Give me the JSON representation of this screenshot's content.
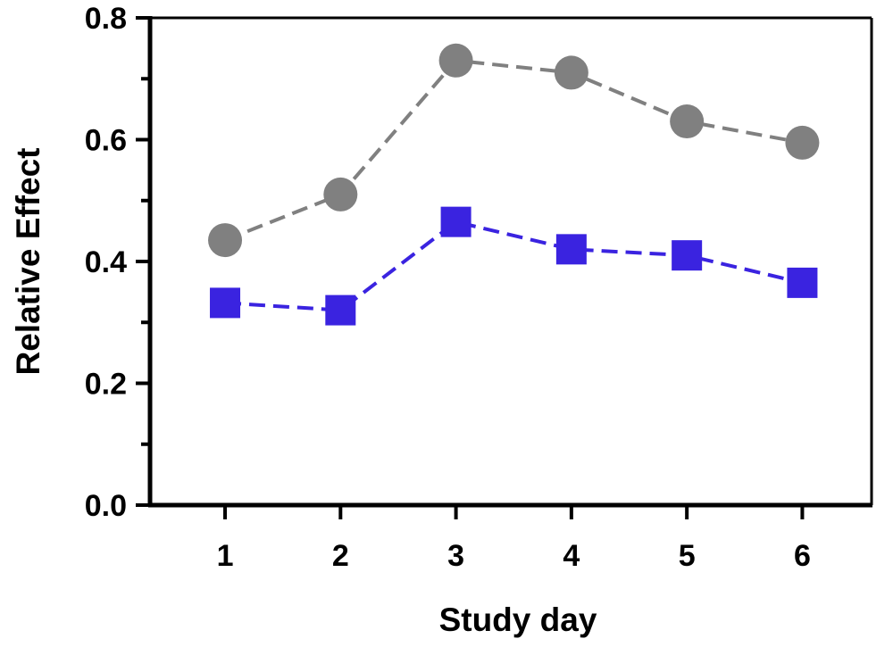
{
  "chart_data": {
    "type": "line",
    "title": "",
    "xlabel": "Study day",
    "ylabel": "Relative Effect",
    "x": [
      1,
      2,
      3,
      4,
      5,
      6
    ],
    "xlim": [
      0.35,
      6.6
    ],
    "ylim": [
      0.0,
      0.8
    ],
    "x_ticks": [
      "1",
      "2",
      "3",
      "4",
      "5",
      "6"
    ],
    "y_ticks": [
      "0.0",
      "0.2",
      "0.4",
      "0.6",
      "0.8"
    ],
    "grid": false,
    "legend": "none",
    "series": [
      {
        "marker": "circle",
        "line_style": "dashed",
        "color": "#808080",
        "values": [
          0.435,
          0.51,
          0.73,
          0.71,
          0.63,
          0.595
        ]
      },
      {
        "marker": "square",
        "line_style": "dashed",
        "color": "#3a23e0",
        "values": [
          0.332,
          0.32,
          0.465,
          0.42,
          0.41,
          0.365
        ]
      }
    ]
  }
}
